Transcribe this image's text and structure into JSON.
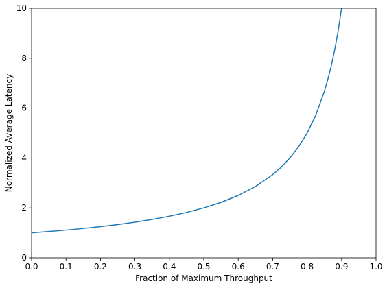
{
  "chart_data": {
    "type": "line",
    "title": "",
    "xlabel": "Fraction of Maximum Throughput",
    "ylabel": "Normalized Average Latency",
    "xlim": [
      0.0,
      1.0
    ],
    "ylim": [
      0,
      10
    ],
    "x_ticks": [
      "0.0",
      "0.1",
      "0.2",
      "0.3",
      "0.4",
      "0.5",
      "0.6",
      "0.7",
      "0.8",
      "0.9",
      "1.0"
    ],
    "y_ticks": [
      "0",
      "2",
      "4",
      "6",
      "8",
      "10"
    ],
    "grid": false,
    "legend": "none",
    "series": [
      {
        "color": "#1f77b4",
        "x": [
          0.0,
          0.05,
          0.1,
          0.15,
          0.2,
          0.25,
          0.3,
          0.35,
          0.4,
          0.45,
          0.5,
          0.55,
          0.6,
          0.65,
          0.7,
          0.725,
          0.75,
          0.775,
          0.8,
          0.825,
          0.85,
          0.86,
          0.87,
          0.88,
          0.89,
          0.9
        ],
        "y": [
          1.0,
          1.053,
          1.111,
          1.176,
          1.25,
          1.333,
          1.429,
          1.538,
          1.667,
          1.818,
          2.0,
          2.222,
          2.5,
          2.857,
          3.333,
          3.636,
          4.0,
          4.444,
          5.0,
          5.714,
          6.667,
          7.143,
          7.692,
          8.333,
          9.091,
          10.0
        ]
      }
    ]
  }
}
